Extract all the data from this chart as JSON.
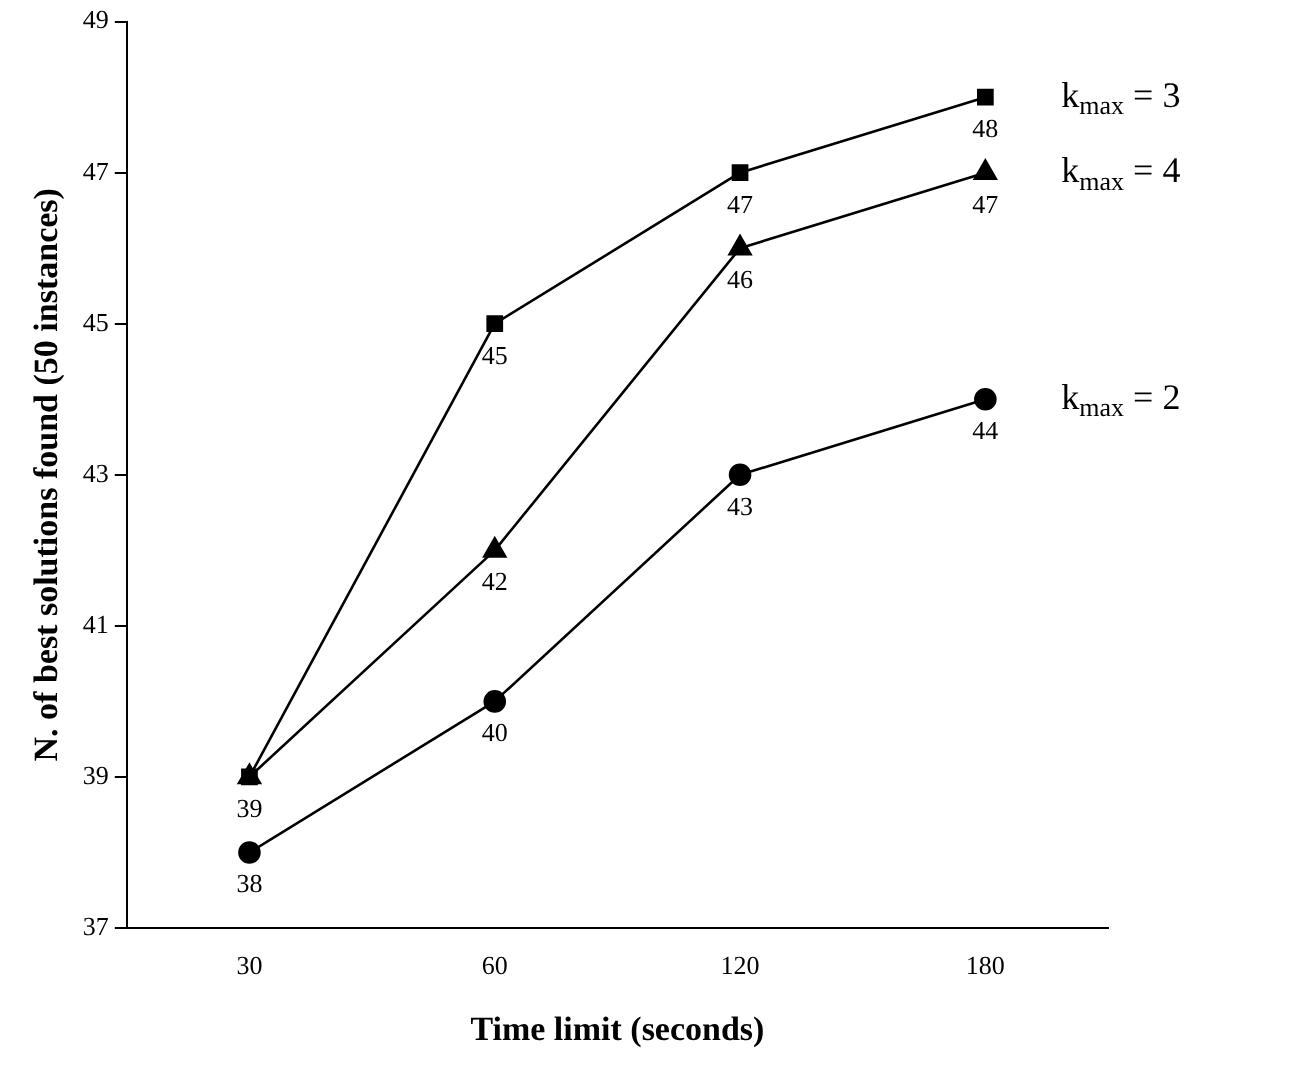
{
  "chart_data": {
    "type": "line",
    "xlabel": "Time limit (seconds)",
    "ylabel": "N. of best solutions found (50 instances)",
    "categories": [
      "30",
      "60",
      "120",
      "180"
    ],
    "series": [
      {
        "name": "k$_{max}$ = 3",
        "color": "#000000",
        "marker": "square",
        "values": [
          39,
          45,
          47,
          48
        ],
        "value_labels": [
          "39",
          "45",
          "47",
          "48"
        ]
      },
      {
        "name": "k$_{max}$ = 4",
        "color": "#000000",
        "marker": "triangle",
        "values": [
          39,
          42,
          46,
          47
        ],
        "value_labels": [
          null,
          "42",
          "46",
          "47"
        ]
      },
      {
        "name": "k$_{max}$ = 2",
        "color": "#000000",
        "marker": "circle",
        "values": [
          38,
          40,
          43,
          44
        ],
        "value_labels": [
          "38",
          "40",
          "43",
          "44"
        ]
      }
    ],
    "ylim": [
      37,
      49
    ],
    "yticks": [
      37,
      39,
      41,
      43,
      45,
      47,
      49
    ],
    "grid": false,
    "legend": false,
    "line_style": "solid"
  }
}
